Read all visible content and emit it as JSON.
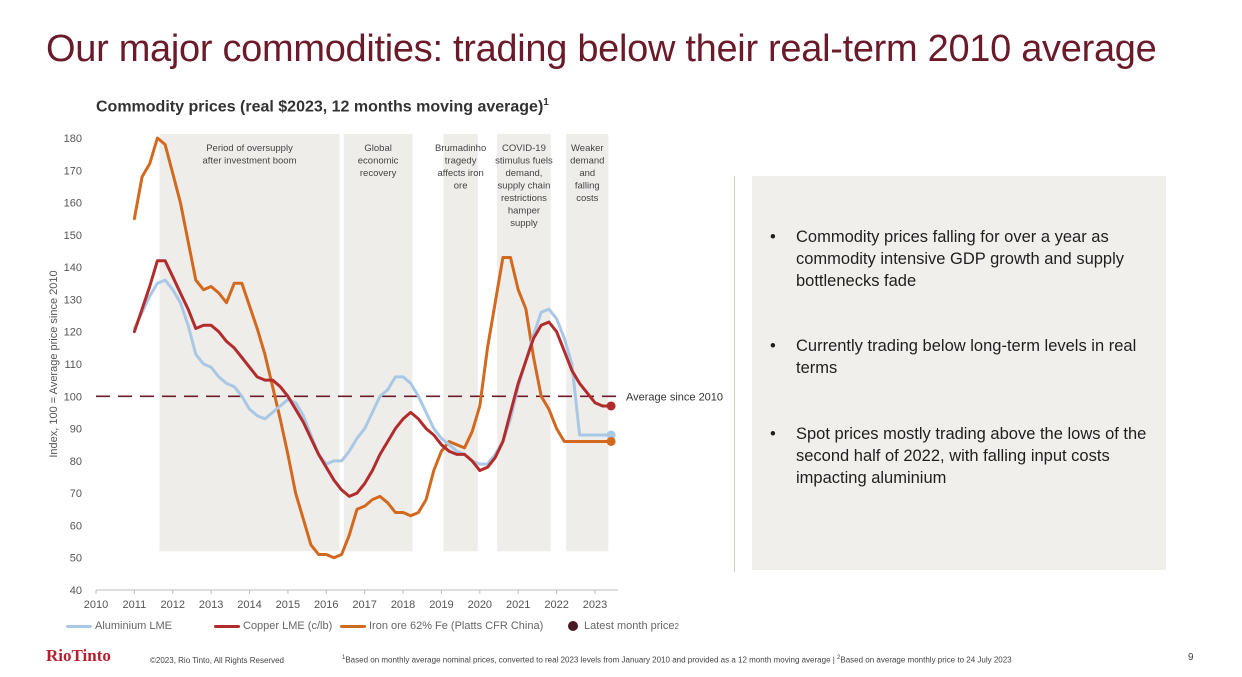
{
  "slide": {
    "title": "Our major commodities: trading below their real-term 2010 average",
    "page_number": "9"
  },
  "chart_data": {
    "type": "line",
    "title": "Commodity prices (real $2023, 12 months moving average)",
    "title_sup": "1",
    "ylabel": "Index, 100 = Average price since 2010",
    "xlabel": "",
    "xlim": [
      2010,
      2023.6
    ],
    "ylim": [
      40,
      180
    ],
    "xticks": [
      "2010",
      "2011",
      "2012",
      "2013",
      "2014",
      "2015",
      "2016",
      "2017",
      "2018",
      "2019",
      "2020",
      "2021",
      "2022",
      "2023"
    ],
    "yticks": [
      40,
      50,
      60,
      70,
      80,
      90,
      100,
      110,
      120,
      130,
      140,
      150,
      160,
      170,
      180
    ],
    "grid": false,
    "reference_line": {
      "y": 100,
      "label": "Average since 2010",
      "color": "#6b1a2a",
      "style": "dashed"
    },
    "shaded_periods": [
      {
        "from": 2011.6,
        "to": 2016.4,
        "label": [
          "Period of oversupply",
          "after investment boom"
        ]
      },
      {
        "from": 2016.4,
        "to": 2018.3,
        "label": [
          "Global",
          "economic",
          "recovery"
        ]
      },
      {
        "from": 2019.0,
        "to": 2020.0,
        "label": [
          "Brumadinho",
          "tragedy",
          "affects iron",
          "ore"
        ]
      },
      {
        "from": 2020.4,
        "to": 2021.9,
        "label": [
          "COVID-19",
          "stimulus fuels",
          "demand,",
          "supply chain",
          "restrictions",
          "hamper",
          "supply"
        ]
      },
      {
        "from": 2022.2,
        "to": 2023.4,
        "label": [
          "Weaker",
          "demand",
          "and",
          "falling",
          "costs"
        ]
      }
    ],
    "series": [
      {
        "name": "Aluminium LME",
        "color": "#a9c8e6",
        "x": [
          2011.0,
          2011.2,
          2011.4,
          2011.6,
          2011.8,
          2012.0,
          2012.2,
          2012.4,
          2012.6,
          2012.8,
          2013.0,
          2013.2,
          2013.4,
          2013.6,
          2013.8,
          2014.0,
          2014.2,
          2014.4,
          2014.6,
          2014.8,
          2015.0,
          2015.2,
          2015.4,
          2015.6,
          2015.8,
          2016.0,
          2016.2,
          2016.4,
          2016.6,
          2016.8,
          2017.0,
          2017.2,
          2017.4,
          2017.6,
          2017.8,
          2018.0,
          2018.2,
          2018.4,
          2018.6,
          2018.8,
          2019.0,
          2019.2,
          2019.4,
          2019.6,
          2019.8,
          2020.0,
          2020.2,
          2020.4,
          2020.6,
          2020.8,
          2021.0,
          2021.2,
          2021.4,
          2021.6,
          2021.8,
          2022.0,
          2022.2,
          2022.4,
          2022.6,
          2022.8,
          2023.0,
          2023.2,
          2023.4
        ],
        "y": [
          121,
          126,
          131,
          135,
          136,
          133,
          129,
          122,
          113,
          110,
          109,
          106,
          104,
          103,
          100,
          96,
          94,
          93,
          95,
          97,
          99,
          98,
          94,
          88,
          82,
          79,
          80,
          80,
          83,
          87,
          90,
          95,
          100,
          102,
          106,
          106,
          104,
          100,
          95,
          90,
          87,
          85,
          83,
          82,
          80,
          79,
          79,
          82,
          86,
          93,
          103,
          111,
          119,
          126,
          127,
          124,
          118,
          110,
          88,
          88,
          88,
          88,
          88
        ]
      },
      {
        "name": "Copper LME (c/lb)",
        "color": "#b32c2c",
        "x": [
          2011.0,
          2011.2,
          2011.4,
          2011.6,
          2011.8,
          2012.0,
          2012.2,
          2012.4,
          2012.6,
          2012.8,
          2013.0,
          2013.2,
          2013.4,
          2013.6,
          2013.8,
          2014.0,
          2014.2,
          2014.4,
          2014.6,
          2014.8,
          2015.0,
          2015.2,
          2015.4,
          2015.6,
          2015.8,
          2016.0,
          2016.2,
          2016.4,
          2016.6,
          2016.8,
          2017.0,
          2017.2,
          2017.4,
          2017.6,
          2017.8,
          2018.0,
          2018.2,
          2018.4,
          2018.6,
          2018.8,
          2019.0,
          2019.2,
          2019.4,
          2019.6,
          2019.8,
          2020.0,
          2020.2,
          2020.4,
          2020.6,
          2020.8,
          2021.0,
          2021.2,
          2021.4,
          2021.6,
          2021.8,
          2022.0,
          2022.2,
          2022.4,
          2022.6,
          2022.8,
          2023.0,
          2023.2,
          2023.4
        ],
        "y": [
          120,
          127,
          134,
          142,
          142,
          137,
          132,
          127,
          121,
          122,
          122,
          120,
          117,
          115,
          112,
          109,
          106,
          105,
          105,
          103,
          100,
          96,
          92,
          87,
          82,
          78,
          74,
          71,
          69,
          70,
          73,
          77,
          82,
          86,
          90,
          93,
          95,
          93,
          90,
          88,
          85,
          83,
          82,
          82,
          80,
          77,
          78,
          81,
          86,
          95,
          104,
          111,
          118,
          122,
          123,
          120,
          114,
          108,
          104,
          101,
          98,
          97,
          97
        ]
      },
      {
        "name": "Iron ore 62% Fe (Platts CFR China)",
        "color": "#d2691e",
        "x": [
          2011.0,
          2011.2,
          2011.4,
          2011.6,
          2011.8,
          2012.0,
          2012.2,
          2012.4,
          2012.6,
          2012.8,
          2013.0,
          2013.2,
          2013.4,
          2013.6,
          2013.8,
          2014.0,
          2014.2,
          2014.4,
          2014.6,
          2014.8,
          2015.0,
          2015.2,
          2015.4,
          2015.6,
          2015.8,
          2016.0,
          2016.2,
          2016.4,
          2016.6,
          2016.8,
          2017.0,
          2017.2,
          2017.4,
          2017.6,
          2017.8,
          2018.0,
          2018.2,
          2018.4,
          2018.6,
          2018.8,
          2019.0,
          2019.2,
          2019.4,
          2019.6,
          2019.8,
          2020.0,
          2020.2,
          2020.4,
          2020.6,
          2020.8,
          2021.0,
          2021.2,
          2021.4,
          2021.6,
          2021.8,
          2022.0,
          2022.2,
          2022.4,
          2022.6,
          2022.8,
          2023.0,
          2023.2,
          2023.4
        ],
        "y": [
          155,
          168,
          172,
          180,
          178,
          169,
          160,
          148,
          136,
          133,
          134,
          132,
          129,
          135,
          135,
          128,
          121,
          113,
          103,
          93,
          82,
          70,
          62,
          54,
          51,
          51,
          50,
          51,
          57,
          65,
          66,
          68,
          69,
          67,
          64,
          64,
          63,
          64,
          68,
          77,
          83,
          86,
          85,
          84,
          89,
          97,
          115,
          129,
          143,
          143,
          133,
          127,
          112,
          100,
          96,
          90,
          86,
          86,
          86,
          86,
          86,
          86,
          86
        ]
      }
    ],
    "latest_month_price": [
      {
        "series": "Copper LME (c/lb)",
        "x": 2023.42,
        "y": 97
      },
      {
        "series": "Aluminium LME",
        "x": 2023.42,
        "y": 88
      },
      {
        "series": "Iron ore 62% Fe (Platts CFR China)",
        "x": 2023.42,
        "y": 86
      }
    ]
  },
  "legend": {
    "aluminium": "Aluminium LME",
    "copper": "Copper LME (c/lb)",
    "iron": "Iron ore 62% Fe (Platts CFR China)",
    "latest": "Latest month price",
    "latest_sup": "2",
    "latest_color": "#4a1724"
  },
  "callout": {
    "bullet": "•",
    "items": [
      "Commodity prices falling for over a year as commodity intensive GDP growth and supply bottlenecks fade",
      "Currently trading below long-term levels in real terms",
      "Spot prices mostly trading above the lows of the second half of 2022, with falling input costs impacting aluminium"
    ]
  },
  "footer": {
    "logo": "RioTinto",
    "copyright": "©2023, Rio Tinto, All Rights Reserved",
    "note_sup1": "1",
    "note_part1": "Based on monthly average nominal prices, converted to real 2023 levels from January 2010 and provided as a 12 month moving average | ",
    "note_sup2": "2",
    "note_part2": "Based on average monthly price to 24 July 2023"
  },
  "colors": {
    "title": "#6b1a2a",
    "shade": "#efedea",
    "callout_bg": "#f1efeb"
  }
}
